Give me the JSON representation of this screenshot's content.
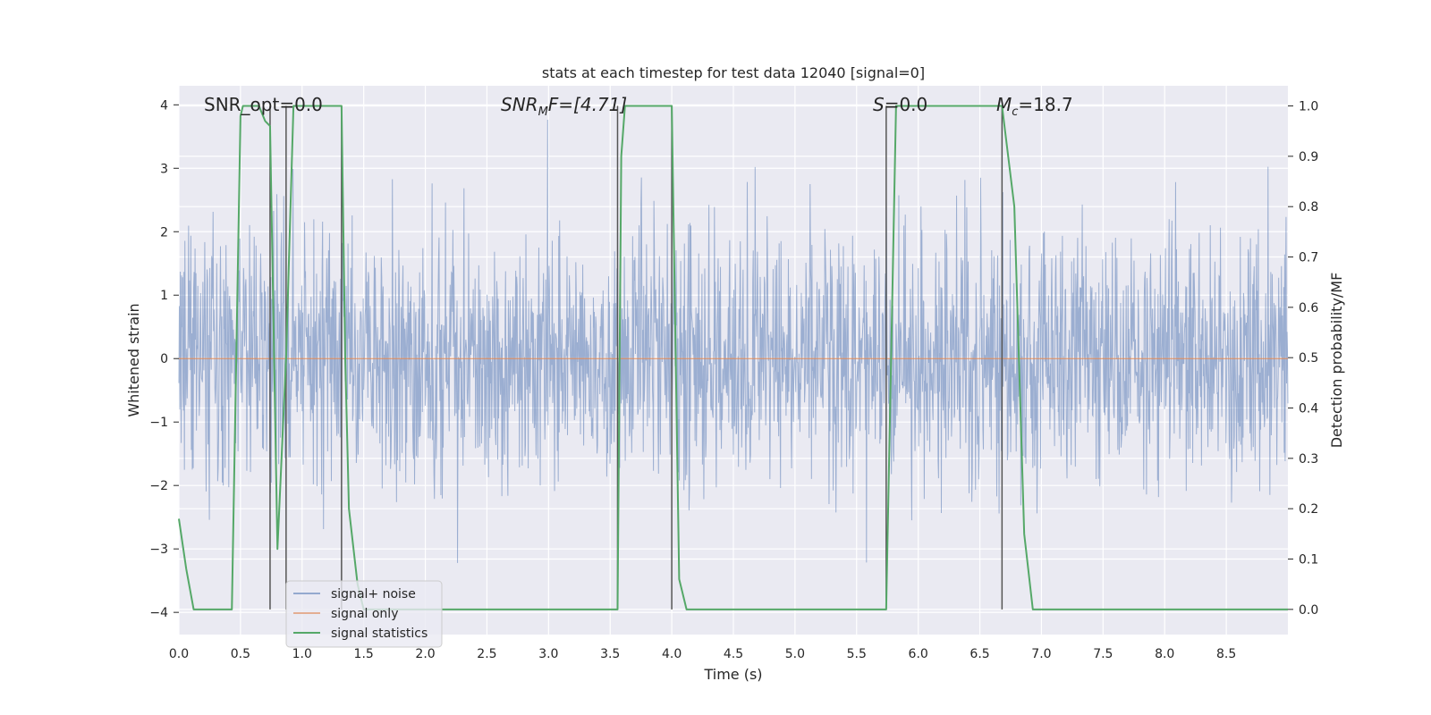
{
  "chart_data": {
    "type": "line",
    "title": "stats at each timestep for test data 12040 [signal=0]",
    "xlabel": "Time (s)",
    "ylabel_left": "Whitened strain",
    "ylabel_right": "Detection probability/MF",
    "xlim": [
      0.0,
      9.0
    ],
    "ylim_left": [
      -4.35,
      4.3
    ],
    "ylim_right": [
      -0.05,
      1.04
    ],
    "x_ticks": [
      "0.0",
      "0.5",
      "1.0",
      "1.5",
      "2.0",
      "2.5",
      "3.0",
      "3.5",
      "4.0",
      "4.5",
      "5.0",
      "5.5",
      "6.0",
      "6.5",
      "7.0",
      "7.5",
      "8.0",
      "8.5"
    ],
    "y_left_ticks": [
      "4",
      "3",
      "2",
      "1",
      "0",
      "−1",
      "−2",
      "−3",
      "−4"
    ],
    "y_right_ticks": [
      "1.0",
      "0.9",
      "0.8",
      "0.7",
      "0.6",
      "0.5",
      "0.4",
      "0.3",
      "0.2",
      "0.1",
      "0.0"
    ],
    "grid": true,
    "legend_placement": "lower-left",
    "annotations": {
      "snr_opt": "SNR_opt=0.0",
      "snr_mf_base": "SNR",
      "snr_mf_sub": "M",
      "snr_mf_rest": "F=[4.71]",
      "s_sym": "S",
      "s_rest": "=0.0",
      "mc_sym": "M",
      "mc_sub": "c",
      "mc_rest": "=18.7"
    },
    "series": [
      {
        "name": "signal+ noise",
        "axis": "left",
        "color": "#4c72b0",
        "description_range": [
          -4.0,
          4.0
        ],
        "typical_range": [
          -1.6,
          1.6
        ]
      },
      {
        "name": "signal only",
        "axis": "left",
        "color": "#dd8452",
        "values_constant": 0.0
      },
      {
        "name": "signal statistics",
        "axis": "right",
        "color": "#55a868",
        "x": [
          0.0,
          0.06,
          0.12,
          0.2,
          0.3,
          0.4,
          0.43,
          0.5,
          0.52,
          0.6,
          0.65,
          0.7,
          0.74,
          0.8,
          0.87,
          0.93,
          0.98,
          1.05,
          1.1,
          1.2,
          1.3,
          1.32,
          1.35,
          1.38,
          1.45,
          1.5,
          3.0,
          3.56,
          3.59,
          3.62,
          3.7,
          3.9,
          4.0,
          4.06,
          4.12,
          4.2,
          4.9,
          5.0,
          5.6,
          5.74,
          5.82,
          5.9,
          6.5,
          6.68,
          6.78,
          6.86,
          6.93,
          7.0,
          9.0
        ],
        "values": [
          0.18,
          0.08,
          0.0,
          0.0,
          0.0,
          0.0,
          0.0,
          0.98,
          1.0,
          1.0,
          1.0,
          0.97,
          0.96,
          0.12,
          0.5,
          1.0,
          1.0,
          1.0,
          1.0,
          1.0,
          1.0,
          1.0,
          0.5,
          0.2,
          0.05,
          0.0,
          0.0,
          0.0,
          0.9,
          1.0,
          1.0,
          1.0,
          1.0,
          0.06,
          0.0,
          0.0,
          0.0,
          0.0,
          0.0,
          0.0,
          1.0,
          1.0,
          1.0,
          1.0,
          0.8,
          0.15,
          0.0,
          0.0,
          0.0
        ]
      }
    ],
    "vertical_lines_x": [
      0.74,
      0.87,
      1.32,
      3.56,
      4.0,
      5.74,
      6.68
    ]
  }
}
